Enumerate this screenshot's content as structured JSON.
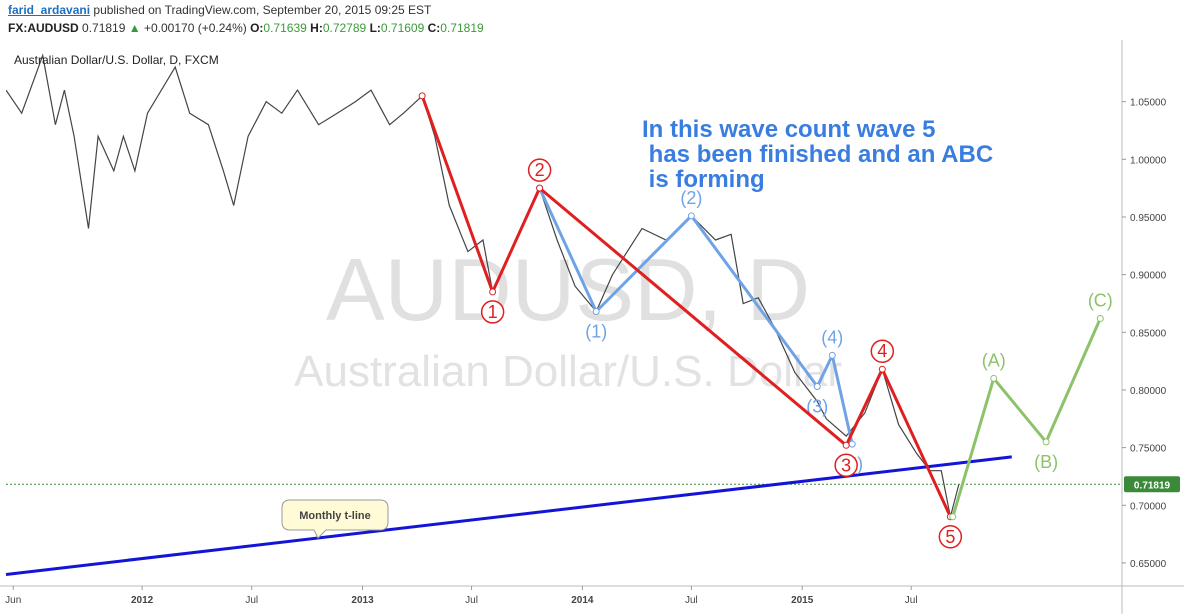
{
  "header": {
    "author": "farid_ardavani",
    "published_text": "published on TradingView.com, September 20, 2015 09:25 EST",
    "symbol": "FX:AUDUSD",
    "price": "0.71819",
    "change_icon": "up-triangle-icon",
    "change": "+0.00170 (+0.24%)",
    "o_label": "O:",
    "o_value": "0.71639",
    "h_label": "H:",
    "h_value": "0.72789",
    "l_label": "L:",
    "l_value": "0.71609",
    "c_label": "C:",
    "c_value": "0.71819"
  },
  "chart_data": {
    "type": "line",
    "title": "Australian Dollar/U.S. Dollar, D, FXCM",
    "watermark_symbol": "AUDUSD, D",
    "watermark_name": "Australian Dollar/U.S. Dollar",
    "annotation_lines": [
      "In this wave count wave 5",
      " has been finished and an ABC",
      " is forming"
    ],
    "callout": "Monthly t-line",
    "current_price_label": "0.71819",
    "current_price": 0.71819,
    "ylim": [
      0.63,
      1.1
    ],
    "xlim": [
      "2011-05-20",
      "2016-06-15"
    ],
    "y_ticks": [
      {
        "value": 1.05,
        "label": "1.05000"
      },
      {
        "value": 1.0,
        "label": "1.00000"
      },
      {
        "value": 0.95,
        "label": "0.95000"
      },
      {
        "value": 0.9,
        "label": "0.90000"
      },
      {
        "value": 0.85,
        "label": "0.85000"
      },
      {
        "value": 0.8,
        "label": "0.80000"
      },
      {
        "value": 0.75,
        "label": "0.75000"
      },
      {
        "value": 0.7,
        "label": "0.70000"
      },
      {
        "value": 0.65,
        "label": "0.65000"
      }
    ],
    "x_ticks": [
      {
        "date": "2011-06-01",
        "label": "Jun"
      },
      {
        "date": "2012-01-01",
        "label": "2012"
      },
      {
        "date": "2012-07-01",
        "label": "Jul"
      },
      {
        "date": "2013-01-01",
        "label": "2013"
      },
      {
        "date": "2013-07-01",
        "label": "Jul"
      },
      {
        "date": "2014-01-01",
        "label": "2014"
      },
      {
        "date": "2014-07-01",
        "label": "Jul"
      },
      {
        "date": "2015-01-01",
        "label": "2015"
      },
      {
        "date": "2015-07-01",
        "label": "Jul"
      }
    ],
    "price_path": [
      [
        "2011-05-20",
        1.06
      ],
      [
        "2011-06-15",
        1.04
      ],
      [
        "2011-07-20",
        1.09
      ],
      [
        "2011-08-10",
        1.03
      ],
      [
        "2011-08-25",
        1.06
      ],
      [
        "2011-09-10",
        1.02
      ],
      [
        "2011-10-04",
        0.94
      ],
      [
        "2011-10-20",
        1.02
      ],
      [
        "2011-11-15",
        0.99
      ],
      [
        "2011-12-01",
        1.02
      ],
      [
        "2011-12-20",
        0.99
      ],
      [
        "2012-01-10",
        1.04
      ],
      [
        "2012-02-25",
        1.08
      ],
      [
        "2012-03-20",
        1.04
      ],
      [
        "2012-04-20",
        1.03
      ],
      [
        "2012-05-15",
        0.99
      ],
      [
        "2012-06-01",
        0.96
      ],
      [
        "2012-06-25",
        1.02
      ],
      [
        "2012-07-25",
        1.05
      ],
      [
        "2012-08-20",
        1.04
      ],
      [
        "2012-09-15",
        1.06
      ],
      [
        "2012-10-20",
        1.03
      ],
      [
        "2012-11-20",
        1.04
      ],
      [
        "2012-12-20",
        1.05
      ],
      [
        "2013-01-15",
        1.06
      ],
      [
        "2013-02-15",
        1.03
      ],
      [
        "2013-03-10",
        1.04
      ],
      [
        "2013-04-10",
        1.055
      ],
      [
        "2013-05-01",
        1.02
      ],
      [
        "2013-05-25",
        0.96
      ],
      [
        "2013-06-25",
        0.92
      ],
      [
        "2013-07-20",
        0.93
      ],
      [
        "2013-08-05",
        0.885
      ],
      [
        "2013-09-05",
        0.92
      ],
      [
        "2013-10-22",
        0.975
      ],
      [
        "2013-11-20",
        0.93
      ],
      [
        "2013-12-20",
        0.89
      ],
      [
        "2014-01-24",
        0.868
      ],
      [
        "2014-02-20",
        0.9
      ],
      [
        "2014-04-10",
        0.94
      ],
      [
        "2014-05-20",
        0.93
      ],
      [
        "2014-07-01",
        0.951
      ],
      [
        "2014-08-10",
        0.93
      ],
      [
        "2014-09-05",
        0.935
      ],
      [
        "2014-09-25",
        0.875
      ],
      [
        "2014-10-20",
        0.88
      ],
      [
        "2014-11-15",
        0.855
      ],
      [
        "2014-12-20",
        0.815
      ],
      [
        "2015-01-26",
        0.79
      ],
      [
        "2015-02-10",
        0.775
      ],
      [
        "2015-03-15",
        0.76
      ],
      [
        "2015-04-15",
        0.78
      ],
      [
        "2015-05-14",
        0.818
      ],
      [
        "2015-06-10",
        0.77
      ],
      [
        "2015-07-10",
        0.745
      ],
      [
        "2015-08-01",
        0.73
      ],
      [
        "2015-08-20",
        0.73
      ],
      [
        "2015-09-04",
        0.69
      ],
      [
        "2015-09-18",
        0.718
      ]
    ],
    "t_line": [
      [
        "2011-05-20",
        0.64
      ],
      [
        "2015-12-15",
        0.742
      ]
    ],
    "price_series_color": "#444444",
    "red_wave_color": "#e02020",
    "blue_wave_color": "#6fa3e6",
    "green_wave_color": "#8cc36a",
    "t_line_color": "#1414d8",
    "annotation_color": "#3a7de0",
    "price_badge_color": "#3a8a3a",
    "red_wave": [
      {
        "label": "",
        "date": "2013-04-10",
        "value": 1.055
      },
      {
        "label": "1",
        "date": "2013-08-05",
        "value": 0.885,
        "pos": "below"
      },
      {
        "label": "2",
        "date": "2013-10-22",
        "value": 0.975,
        "pos": "above"
      },
      {
        "label": "3",
        "date": "2015-03-15",
        "value": 0.752,
        "pos": "below"
      },
      {
        "label": "4",
        "date": "2015-05-14",
        "value": 0.818,
        "pos": "above"
      },
      {
        "label": "5",
        "date": "2015-09-04",
        "value": 0.69,
        "pos": "below"
      }
    ],
    "blue_wave": [
      {
        "label": "",
        "date": "2013-10-22",
        "value": 0.975
      },
      {
        "label": "(1)",
        "date": "2014-01-24",
        "value": 0.868,
        "pos": "below"
      },
      {
        "label": "(2)",
        "date": "2014-07-01",
        "value": 0.951,
        "pos": "above"
      },
      {
        "label": "(3)",
        "date": "2015-01-26",
        "value": 0.803,
        "pos": "below"
      },
      {
        "label": "(4)",
        "date": "2015-02-20",
        "value": 0.83,
        "pos": "above"
      },
      {
        "label": "(5)",
        "date": "2015-03-25",
        "value": 0.753,
        "pos": "below"
      }
    ],
    "green_wave": [
      {
        "label": "",
        "date": "2015-09-08",
        "value": 0.69
      },
      {
        "label": "(A)",
        "date": "2015-11-15",
        "value": 0.81,
        "pos": "above"
      },
      {
        "label": "(B)",
        "date": "2016-02-10",
        "value": 0.755,
        "pos": "below"
      },
      {
        "label": "(C)",
        "date": "2016-05-10",
        "value": 0.862,
        "pos": "above"
      }
    ]
  }
}
